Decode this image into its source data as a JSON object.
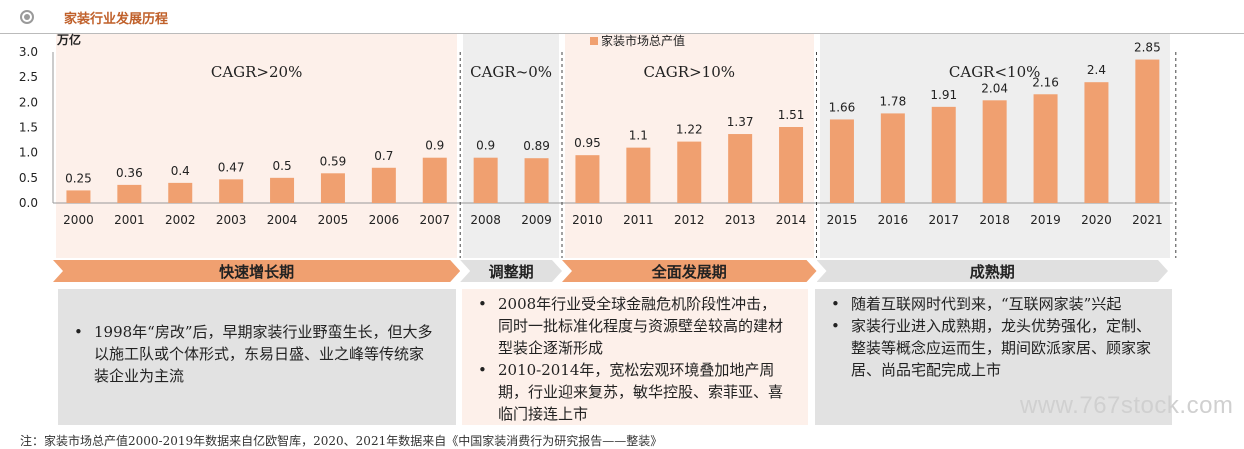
{
  "header": {
    "title": "家装行业发展历程",
    "icon": "radio-dot-icon"
  },
  "chart_data": {
    "type": "bar",
    "unit_label": "万亿",
    "legend": "家装市场总产值",
    "legend_position": "top-center",
    "categories": [
      "2000",
      "2001",
      "2002",
      "2003",
      "2004",
      "2005",
      "2006",
      "2007",
      "2008",
      "2009",
      "2010",
      "2011",
      "2012",
      "2013",
      "2014",
      "2015",
      "2016",
      "2017",
      "2018",
      "2019",
      "2020",
      "2021"
    ],
    "values": [
      0.25,
      0.36,
      0.4,
      0.47,
      0.5,
      0.59,
      0.7,
      0.9,
      0.9,
      0.89,
      0.95,
      1.1,
      1.22,
      1.37,
      1.51,
      1.66,
      1.78,
      1.91,
      2.04,
      2.16,
      2.4,
      2.85
    ],
    "value_labels": [
      "0.25",
      "0.36",
      "0.4",
      "0.47",
      "0.5",
      "0.59",
      "0.7",
      "0.9",
      "0.9",
      "0.89",
      "0.95",
      "1.1",
      "1.22",
      "1.37",
      "1.51",
      "1.66",
      "1.78",
      "1.91",
      "2.04",
      "2.16",
      "2.4",
      "2.85"
    ],
    "yticks": [
      "0.0",
      "0.5",
      "1.0",
      "1.5",
      "2.0",
      "2.5",
      "3.0"
    ],
    "ylim": [
      0,
      3.0
    ],
    "bar_color": "#f0a070",
    "grid": false,
    "bands": [
      {
        "label": "CAGR>20%",
        "from": 0,
        "to": 7,
        "color": "#fdf0ea"
      },
      {
        "label": "CAGR~0%",
        "from": 8,
        "to": 9,
        "color": "#eeeeee"
      },
      {
        "label": "CAGR>10%",
        "from": 10,
        "to": 14,
        "color": "#fdf0ea"
      },
      {
        "label": "CAGR<10%",
        "from": 15,
        "to": 21,
        "color": "#eeeeee"
      }
    ]
  },
  "stages": [
    {
      "label": "快速增长期",
      "color": "#f0a070"
    },
    {
      "label": "调整期",
      "color": "#e0e0e0"
    },
    {
      "label": "全面发展期",
      "color": "#f0a070"
    },
    {
      "label": "成熟期",
      "color": "#e0e0e0"
    }
  ],
  "boxes": [
    {
      "color": "#e2e2e2",
      "bullets": [
        "1998年“房改”后，早期家装行业野蛮生长，但大多以施工队或个体形式，东易日盛、业之峰等传统家装企业为主流"
      ]
    },
    {
      "color": "#fdf0ea",
      "bullets": [
        "2008年行业受全球金融危机阶段性冲击，同时一批标准化程度与资源壁垒较高的建材型装企逐渐形成",
        "2010-2014年，宽松宏观环境叠加地产周期，行业迎来复苏，敏华控股、索菲亚、喜临门接连上市"
      ]
    },
    {
      "color": "#e2e2e2",
      "bullets": [
        "随着互联网时代到来，“互联网家装”兴起",
        "家装行业进入成熟期，龙头优势强化，定制、整装等概念应运而生，期间欧派家居、顾家家居、尚品宅配完成上市"
      ]
    }
  ],
  "note": "注：家装市场总产值2000-2019年数据来自亿欧智库，2020、2021年数据来自《中国家装消费行为研究报告——整装》",
  "watermark": "www.767stock.com"
}
